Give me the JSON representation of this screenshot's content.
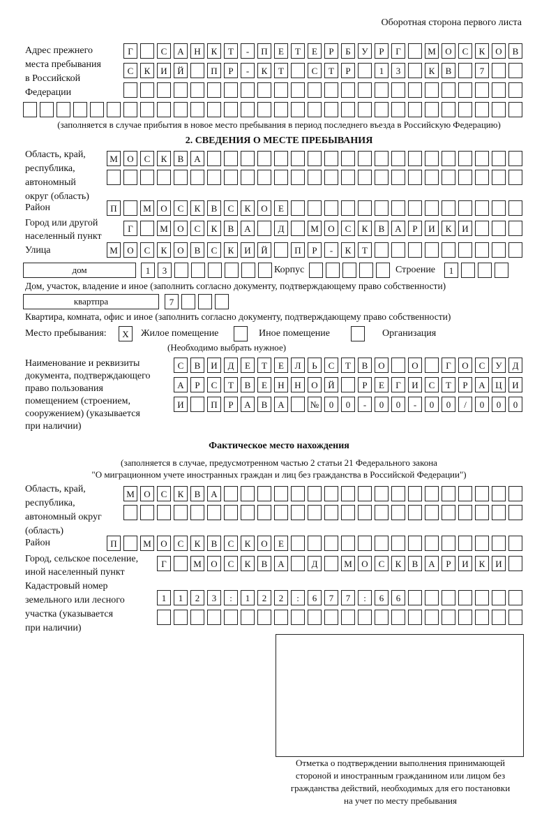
{
  "page_header": "Оборотная сторона первого листа",
  "prev_address": {
    "label": [
      "Адрес прежнего",
      "места пребывания",
      "в Российской",
      "Федерации"
    ],
    "rows": [
      "Г САНКТ-ПЕТЕРБУРГ МОСКОВ",
      "СКИЙ ПР-КТ СТР 13 КВ 7  ",
      "                        ",
      "                              "
    ],
    "note": "(заполняется в случае прибытия в новое место пребывания в период последнего въезда в Российскую Федерацию)"
  },
  "section2": {
    "title": "2. СВЕДЕНИЯ О МЕСТЕ ПРЕБЫВАНИЯ",
    "region_label": [
      "Область, край,",
      "республика,",
      "автономный",
      "округ (область)"
    ],
    "region_rows": [
      "МОСКВА                   ",
      "                         "
    ],
    "district_label": "Район",
    "district_row": "П МОСКВСКОЕ              ",
    "city_label": [
      "Город или другой",
      "населенный пункт"
    ],
    "city_row": "Г МОСКВА Д МОСКВАРИКИ   ",
    "street_label": "Улица",
    "street_row": "МОСКОВСКИЙ ПР-КТ         ",
    "house_type": "дом",
    "house_cells": "13      ",
    "korpus_label": "Корпус",
    "korpus_cells": "     ",
    "building_label": "Строение",
    "building_cells": "1   ",
    "house_caption": "Дом, участок, владение и иное (заполнить согласно документу, подтверждающему право собственности)",
    "apt_type": "квартпра",
    "apt_cells": "7   ",
    "apt_caption": "Квартира, комната, офис и иное (заполнить согласно документу, подтверждающему право собственности)",
    "stay_label": "Место пребывания:",
    "options": [
      {
        "label": "Жилое помещение",
        "mark": "X"
      },
      {
        "label": "Иное помещение",
        "mark": ""
      },
      {
        "label": "Организация",
        "mark": ""
      }
    ],
    "choose_note": "(Необходимо выбрать нужное)",
    "doc_label": [
      "Наименование и реквизиты",
      "документа, подтверждающего",
      "право пользования",
      "помещением (строением,",
      "сооружением) (указывается",
      "при наличии)"
    ],
    "doc_rows": [
      "СВИДЕТЕЛЬСТВО О ГОСУД",
      "АРСТВЕННОЙ РЕГИСТРАЦИ",
      "И ПРАВА №00-00-00/000"
    ]
  },
  "actual": {
    "title": "Фактическое место нахождения",
    "subtitle": [
      "(заполняется в случае, предусмотренном частью 2 статьи 21 Федерального закона",
      "\"О миграционном учете иностранных граждан и лиц без гражданства в Российской Федерации\")"
    ],
    "region_label": [
      "Область, край,",
      "республика,",
      "автономный округ",
      "(область)"
    ],
    "region_rows": [
      "МОСКВА                  ",
      "                        "
    ],
    "district_label": "Район",
    "district_row": "П МОСКВСКОЕ              ",
    "city_label": [
      "Город, сельское поселение,",
      "иной населенный пункт"
    ],
    "city_row": "Г МОСКВА Д МОСКВАРИКИ ",
    "cadastre_label": [
      "Кадастровый номер",
      "земельного или лесного",
      "участка (указывается",
      "при наличии)"
    ],
    "cadastre_rows": [
      "1123:122:677:66       ",
      "                      "
    ]
  },
  "stamp_caption": [
    "Отметка о подтверждении выполнения принимающей",
    "стороной и иностранным гражданином или лицом без",
    "гражданства действий, необходимых для его постановки",
    "на учет по месту пребывания"
  ]
}
